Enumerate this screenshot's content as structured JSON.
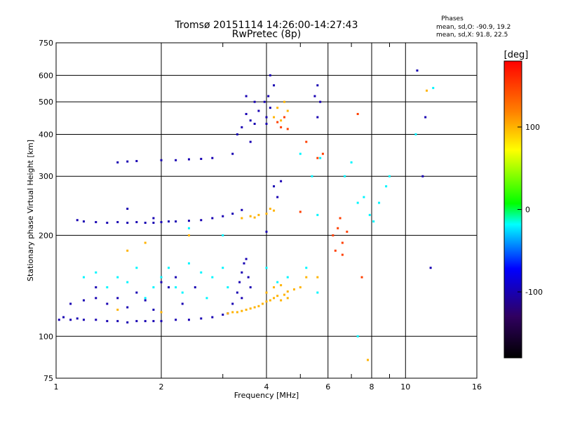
{
  "header": {
    "title": "Tromsø 20151114 14:26:00-14:27:43",
    "subtitle": "RwPretec (8p)",
    "phases_label": "Phases",
    "phases_o": "mean, sd,O: -90.9, 19.2",
    "phases_x": "mean, sd,X:  91.8, 22.5"
  },
  "chart_data": {
    "type": "scatter",
    "title": "Tromsø 20151114 14:26:00-14:27:43",
    "subtitle": "RwPretec (8p)",
    "xlabel": "Frequency [MHz]",
    "ylabel": "Stationary phase Virtual Height [km]",
    "x_scale": "log",
    "y_scale": "log",
    "xlim": [
      1,
      16
    ],
    "ylim": [
      75,
      750
    ],
    "x_ticks": [
      1,
      2,
      4,
      6,
      8,
      10,
      16
    ],
    "x_tick_labels": [
      "1",
      "2",
      "4",
      "6",
      "8",
      "10",
      "16"
    ],
    "x_minor_ticks": [
      3,
      5,
      7,
      9
    ],
    "y_ticks": [
      75,
      100,
      200,
      300,
      400,
      500,
      600,
      750
    ],
    "y_tick_labels": [
      "75",
      "100",
      "200",
      "300",
      "400",
      "500",
      "600",
      "750"
    ],
    "grid": true,
    "colorbar": {
      "label": "[deg]",
      "range": [
        -180,
        180
      ],
      "ticks": [
        100,
        0,
        -100
      ],
      "tick_labels": [
        "100",
        "0",
        "-100"
      ],
      "colors": [
        "#000000",
        "#300060",
        "#0000ff",
        "#00ffff",
        "#00ff00",
        "#ffff00",
        "#ff8000",
        "#ff0000"
      ]
    },
    "series": [
      {
        "phase": -100,
        "points": [
          [
            1.02,
            112
          ],
          [
            1.05,
            114
          ],
          [
            1.1,
            112
          ],
          [
            1.15,
            113
          ],
          [
            1.2,
            112
          ],
          [
            1.3,
            112
          ],
          [
            1.4,
            111
          ],
          [
            1.5,
            111
          ],
          [
            1.6,
            110
          ],
          [
            1.7,
            111
          ],
          [
            1.8,
            111
          ],
          [
            1.9,
            111
          ],
          [
            2.0,
            111
          ],
          [
            2.2,
            112
          ],
          [
            2.4,
            112
          ],
          [
            2.6,
            113
          ],
          [
            2.8,
            114
          ],
          [
            3.0,
            116
          ],
          [
            3.1,
            117
          ],
          [
            1.15,
            222
          ],
          [
            1.2,
            220
          ],
          [
            1.3,
            219
          ],
          [
            1.4,
            218
          ],
          [
            1.5,
            219
          ],
          [
            1.6,
            218
          ],
          [
            1.7,
            219
          ],
          [
            1.8,
            218
          ],
          [
            1.9,
            218
          ],
          [
            2.0,
            219
          ],
          [
            2.1,
            220
          ],
          [
            2.2,
            220
          ],
          [
            2.4,
            221
          ],
          [
            2.6,
            222
          ],
          [
            2.8,
            225
          ],
          [
            3.0,
            228
          ],
          [
            3.2,
            232
          ],
          [
            3.4,
            238
          ],
          [
            3.2,
            125
          ],
          [
            3.3,
            135
          ],
          [
            3.35,
            145
          ],
          [
            3.4,
            155
          ],
          [
            3.5,
            170
          ],
          [
            3.45,
            165
          ],
          [
            3.55,
            150
          ],
          [
            3.6,
            140
          ],
          [
            3.4,
            130
          ],
          [
            3.4,
            420
          ],
          [
            3.5,
            460
          ],
          [
            3.6,
            440
          ],
          [
            3.7,
            500
          ],
          [
            3.6,
            380
          ],
          [
            3.3,
            400
          ],
          [
            3.5,
            520
          ],
          [
            3.2,
            350
          ],
          [
            3.8,
            470
          ],
          [
            3.7,
            430
          ],
          [
            4.0,
            450
          ],
          [
            4.1,
            480
          ],
          [
            4.05,
            520
          ],
          [
            4.2,
            560
          ],
          [
            4.1,
            600
          ],
          [
            4.0,
            430
          ],
          [
            3.95,
            500
          ],
          [
            5.6,
            450
          ],
          [
            5.7,
            500
          ],
          [
            5.6,
            560
          ],
          [
            5.5,
            520
          ],
          [
            2.0,
            335
          ],
          [
            2.2,
            335
          ],
          [
            2.4,
            337
          ],
          [
            2.6,
            338
          ],
          [
            2.8,
            340
          ],
          [
            1.5,
            330
          ],
          [
            1.6,
            332
          ],
          [
            1.7,
            333
          ],
          [
            1.2,
            128
          ],
          [
            1.3,
            140
          ],
          [
            1.4,
            125
          ],
          [
            1.5,
            130
          ],
          [
            1.6,
            122
          ],
          [
            1.7,
            135
          ],
          [
            1.8,
            128
          ],
          [
            2.0,
            145
          ],
          [
            2.1,
            140
          ],
          [
            2.2,
            150
          ],
          [
            2.5,
            140
          ],
          [
            1.3,
            130
          ],
          [
            1.1,
            125
          ],
          [
            1.9,
            120
          ],
          [
            2.3,
            125
          ],
          [
            4.3,
            260
          ],
          [
            4.4,
            290
          ],
          [
            4.2,
            280
          ],
          [
            11.2,
            300
          ],
          [
            11.4,
            450
          ],
          [
            11.8,
            160
          ],
          [
            10.8,
            620
          ],
          [
            4.0,
            205
          ],
          [
            1.6,
            240
          ],
          [
            1.9,
            225
          ]
        ]
      },
      {
        "phase": -20,
        "points": [
          [
            1.4,
            140
          ],
          [
            1.5,
            150
          ],
          [
            1.6,
            145
          ],
          [
            1.7,
            160
          ],
          [
            1.8,
            130
          ],
          [
            2.0,
            150
          ],
          [
            2.1,
            160
          ],
          [
            2.2,
            140
          ],
          [
            2.4,
            165
          ],
          [
            2.6,
            155
          ],
          [
            2.8,
            150
          ],
          [
            3.0,
            160
          ],
          [
            2.3,
            135
          ],
          [
            1.9,
            140
          ],
          [
            2.7,
            130
          ],
          [
            3.1,
            140
          ],
          [
            1.2,
            150
          ],
          [
            1.3,
            155
          ],
          [
            4.0,
            160
          ],
          [
            4.3,
            145
          ],
          [
            4.6,
            150
          ],
          [
            5.6,
            135
          ],
          [
            5.2,
            160
          ],
          [
            5.4,
            300
          ],
          [
            5.7,
            340
          ],
          [
            6.7,
            300
          ],
          [
            7.0,
            330
          ],
          [
            7.3,
            250
          ],
          [
            7.6,
            260
          ],
          [
            7.9,
            230
          ],
          [
            8.1,
            220
          ],
          [
            8.4,
            250
          ],
          [
            8.8,
            280
          ],
          [
            9.0,
            300
          ],
          [
            5.0,
            350
          ],
          [
            5.6,
            230
          ],
          [
            3.0,
            200
          ],
          [
            2.4,
            210
          ],
          [
            7.3,
            100
          ],
          [
            10.7,
            400
          ],
          [
            12.0,
            550
          ]
        ]
      },
      {
        "phase": 100,
        "points": [
          [
            3.1,
            117
          ],
          [
            3.2,
            118
          ],
          [
            3.3,
            118
          ],
          [
            3.4,
            119
          ],
          [
            3.5,
            120
          ],
          [
            3.6,
            121
          ],
          [
            3.7,
            122
          ],
          [
            3.8,
            123
          ],
          [
            3.9,
            125
          ],
          [
            4.0,
            127
          ],
          [
            4.1,
            128
          ],
          [
            4.2,
            130
          ],
          [
            4.3,
            132
          ],
          [
            4.4,
            128
          ],
          [
            4.5,
            133
          ],
          [
            4.6,
            130
          ],
          [
            4.8,
            138
          ],
          [
            5.0,
            140
          ],
          [
            4.0,
            135
          ],
          [
            4.2,
            140
          ],
          [
            4.4,
            142
          ],
          [
            4.6,
            136
          ],
          [
            3.4,
            225
          ],
          [
            3.6,
            228
          ],
          [
            3.8,
            230
          ],
          [
            4.0,
            232
          ],
          [
            4.2,
            237
          ],
          [
            3.7,
            226
          ],
          [
            4.1,
            240
          ],
          [
            4.3,
            480
          ],
          [
            4.5,
            500
          ],
          [
            4.2,
            450
          ],
          [
            4.4,
            440
          ],
          [
            4.6,
            470
          ],
          [
            5.2,
            150
          ],
          [
            5.6,
            150
          ],
          [
            7.8,
            85
          ],
          [
            11.5,
            540
          ],
          [
            1.8,
            190
          ],
          [
            1.6,
            180
          ],
          [
            2.4,
            200
          ],
          [
            2.0,
            118
          ],
          [
            1.5,
            120
          ]
        ]
      },
      {
        "phase": 150,
        "points": [
          [
            4.4,
            420
          ],
          [
            4.5,
            450
          ],
          [
            4.3,
            435
          ],
          [
            4.6,
            415
          ],
          [
            5.2,
            380
          ],
          [
            6.2,
            200
          ],
          [
            6.4,
            210
          ],
          [
            6.6,
            190
          ],
          [
            6.5,
            225
          ],
          [
            6.8,
            205
          ],
          [
            6.3,
            180
          ],
          [
            7.3,
            460
          ],
          [
            5.8,
            350
          ],
          [
            7.5,
            150
          ],
          [
            5.6,
            340
          ],
          [
            6.6,
            175
          ],
          [
            5.0,
            235
          ]
        ]
      }
    ]
  }
}
